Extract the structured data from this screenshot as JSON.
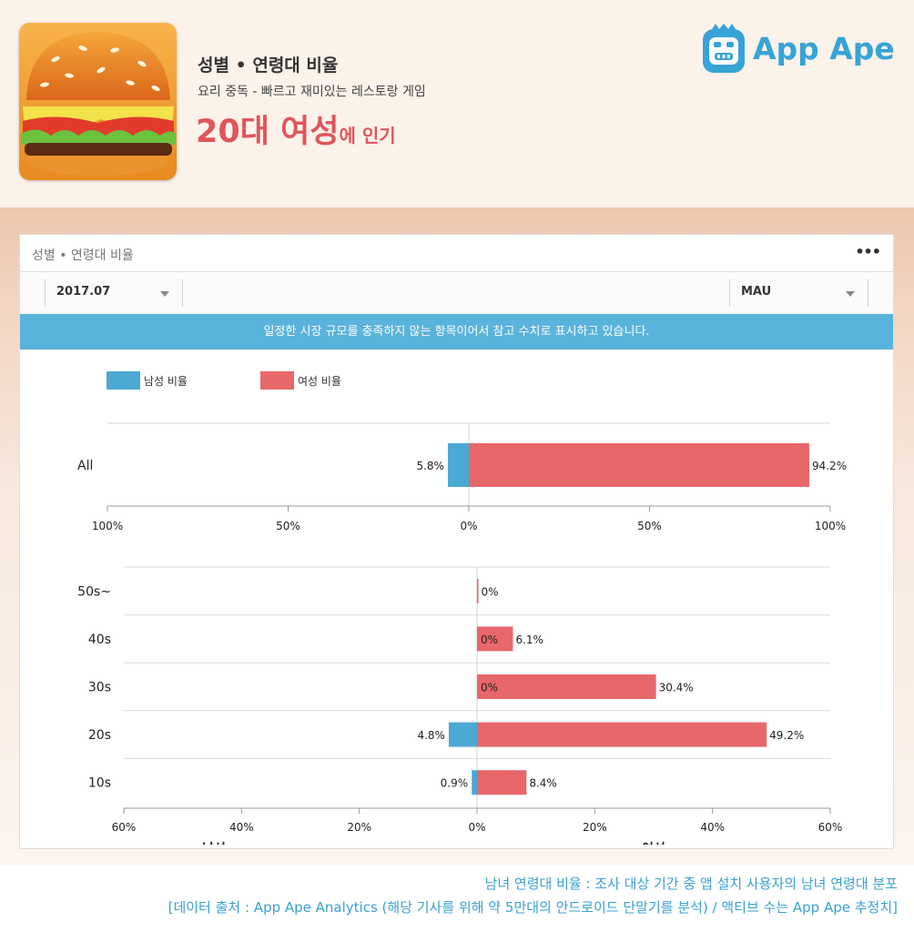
{
  "header": {
    "title": "성별 • 연령대 비율",
    "subtitle": "요리 중독 - 빠르고 재미있는 레스토랑 게임",
    "highlight_big": "20대 여성",
    "highlight_small": "에 인기",
    "logo_text": "App Ape",
    "app_icon": "burger-icon"
  },
  "card": {
    "title": "성별 • 연령대 비율",
    "more_label": "•••",
    "period_select": "2017.07",
    "metric_select": "MAU",
    "notice": "일정한 시장 규모를 충족하지 않는 항목이어서 참고 수치로 표시하고 있습니다."
  },
  "legend": {
    "male": "남성 비율",
    "female": "여성 비율"
  },
  "colors": {
    "male": "#4ba9d3",
    "female": "#e8676a",
    "accent": "#37a3d6",
    "notice_bg": "#5ab3db"
  },
  "chart_data": [
    {
      "type": "bar",
      "orientation": "horizontal-diverging",
      "categories": [
        "All"
      ],
      "series": [
        {
          "name": "남성 비율",
          "values": [
            5.8
          ],
          "labels": [
            "5.8%"
          ]
        },
        {
          "name": "여성 비율",
          "values": [
            94.2
          ],
          "labels": [
            "94.2%"
          ]
        }
      ],
      "xlim": [
        -100,
        100
      ],
      "ticks": [
        "100%",
        "50%",
        "0%",
        "50%",
        "100%"
      ]
    },
    {
      "type": "bar",
      "orientation": "horizontal-diverging",
      "categories": [
        "50s~",
        "40s",
        "30s",
        "20s",
        "10s"
      ],
      "series": [
        {
          "name": "남성 비율",
          "values": [
            0,
            0,
            0,
            4.8,
            0.9
          ],
          "labels": [
            "",
            "",
            "",
            "4.8%",
            "0.9%"
          ]
        },
        {
          "name": "여성 비율",
          "values": [
            0,
            6.1,
            30.4,
            49.2,
            8.4
          ],
          "labels": [
            "0%",
            "6.1%",
            "30.4%",
            "49.2%",
            "8.4%"
          ]
        }
      ],
      "inner_labels": [
        "",
        "0%",
        "0%",
        "",
        ""
      ],
      "xlim": [
        -60,
        60
      ],
      "ticks": [
        "60%",
        "40%",
        "20%",
        "0%",
        "20%",
        "40%",
        "60%"
      ],
      "xlabel_left": "남성",
      "xlabel_right": "여성"
    }
  ],
  "footer": {
    "line1": "남녀 연령대 비율 : 조사 대상 기간 중 앱 설치 사용자의 남녀 연령대 분포",
    "line2": "[데이터 출처 : App Ape Analytics (해당 기사를 위해 약 5만대의 안드로이드 단말기를 분석) / 액티브 수는 App Ape 추정치]"
  }
}
